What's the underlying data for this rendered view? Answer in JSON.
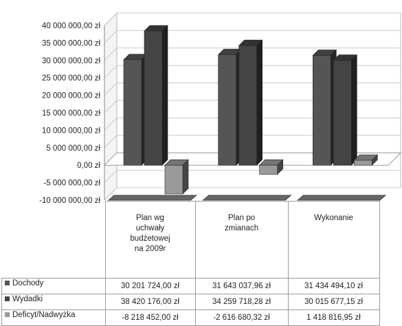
{
  "chart_data": {
    "type": "bar",
    "categories": [
      "Plan wg uchwały budżetowej na 2009r",
      "Plan po zmianach",
      "Wykonanie"
    ],
    "category_lines": [
      [
        "Plan wg",
        "uchwały",
        "budżetowej",
        "na 2009r"
      ],
      [
        "Plan po",
        "zmianach"
      ],
      [
        "Wykonanie"
      ]
    ],
    "series": [
      {
        "name": "Dochody",
        "values": [
          30201724.0,
          31643037.96,
          31434494.1
        ],
        "color": "#555555",
        "labels": [
          "30 201 724,00 zł",
          "31 643 037,96 zł",
          "31 434 494,10 zł"
        ]
      },
      {
        "name": "Wydadki",
        "values": [
          38420176.0,
          34259718.28,
          30015677.15
        ],
        "color": "#444444",
        "labels": [
          "38 420 176,00 zł",
          "34 259 718,28 zł",
          "30 015 677,15 zł"
        ]
      },
      {
        "name": "Deficyt/Nadwyżka",
        "values": [
          -8218452.0,
          -2616680.32,
          1418816.95
        ],
        "color": "#9a9a9a",
        "labels": [
          "-8 218 452,00 zł",
          "-2 616 680,32 zł",
          "1 418 816,95 zł"
        ]
      }
    ],
    "ylim": [
      -10000000,
      40000000
    ],
    "y_ticks": [
      40000000,
      35000000,
      30000000,
      25000000,
      20000000,
      15000000,
      10000000,
      5000000,
      0,
      -5000000,
      -10000000
    ],
    "y_tick_labels": [
      "40 000 000,00 zł",
      "35 000 000,00 zł",
      "30 000 000,00 zł",
      "25 000 000,00 zł",
      "20 000 000,00 zł",
      "15 000 000,00 zł",
      "10 000 000,00 zł",
      "5 000 000,00 zł",
      "0,00 zł",
      "-5 000 000,00 zł",
      "-10 000 000,00 zł"
    ],
    "grid": true,
    "legend": "data-table",
    "style": "3d-column"
  }
}
